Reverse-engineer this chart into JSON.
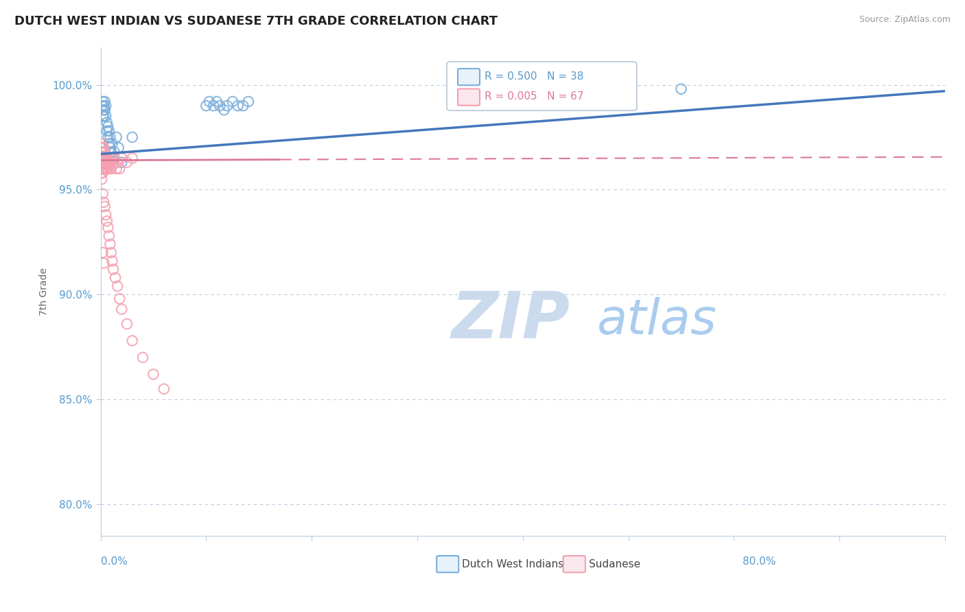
{
  "title": "DUTCH WEST INDIAN VS SUDANESE 7TH GRADE CORRELATION CHART",
  "source_text": "Source: ZipAtlas.com",
  "ylabel": "7th Grade",
  "ytick_labels": [
    "80.0%",
    "85.0%",
    "90.0%",
    "95.0%",
    "100.0%"
  ],
  "ytick_values": [
    0.8,
    0.85,
    0.9,
    0.95,
    1.0
  ],
  "xlim": [
    0.0,
    0.8
  ],
  "ylim": [
    0.785,
    1.018
  ],
  "color_blue": "#7AADDB",
  "color_pink": "#F4A0B0",
  "color_blue_dark": "#4477BB",
  "color_pink_dark": "#DD7799",
  "color_ytick": "#5599CC",
  "watermark_zip": "ZIP",
  "watermark_atlas": "atlas",
  "dutch_x": [
    0.001,
    0.002,
    0.002,
    0.003,
    0.003,
    0.003,
    0.004,
    0.004,
    0.005,
    0.005,
    0.006,
    0.006,
    0.007,
    0.007,
    0.008,
    0.008,
    0.009,
    0.009,
    0.01,
    0.011,
    0.012,
    0.013,
    0.015,
    0.017,
    0.02,
    0.1,
    0.103,
    0.107,
    0.11,
    0.113,
    0.117,
    0.12,
    0.125,
    0.13,
    0.135,
    0.14,
    0.55,
    0.03
  ],
  "dutch_y": [
    0.99,
    0.985,
    0.992,
    0.988,
    0.99,
    0.985,
    0.988,
    0.992,
    0.99,
    0.985,
    0.978,
    0.982,
    0.975,
    0.98,
    0.972,
    0.978,
    0.97,
    0.975,
    0.968,
    0.972,
    0.965,
    0.968,
    0.975,
    0.97,
    0.963,
    0.99,
    0.992,
    0.99,
    0.992,
    0.99,
    0.988,
    0.99,
    0.992,
    0.99,
    0.99,
    0.992,
    0.998,
    0.975
  ],
  "sudanese_x": [
    0.001,
    0.001,
    0.001,
    0.001,
    0.001,
    0.001,
    0.001,
    0.001,
    0.002,
    0.002,
    0.002,
    0.002,
    0.002,
    0.002,
    0.003,
    0.003,
    0.003,
    0.003,
    0.003,
    0.004,
    0.004,
    0.004,
    0.004,
    0.005,
    0.005,
    0.005,
    0.006,
    0.006,
    0.006,
    0.007,
    0.007,
    0.008,
    0.008,
    0.009,
    0.009,
    0.01,
    0.01,
    0.012,
    0.013,
    0.015,
    0.016,
    0.018,
    0.02,
    0.025,
    0.03,
    0.002,
    0.003,
    0.004,
    0.005,
    0.006,
    0.007,
    0.008,
    0.009,
    0.01,
    0.011,
    0.012,
    0.014,
    0.016,
    0.018,
    0.02,
    0.025,
    0.03,
    0.04,
    0.05,
    0.06,
    0.002,
    0.003
  ],
  "sudanese_y": [
    0.97,
    0.972,
    0.968,
    0.966,
    0.964,
    0.96,
    0.958,
    0.955,
    0.968,
    0.965,
    0.97,
    0.963,
    0.96,
    0.958,
    0.966,
    0.963,
    0.96,
    0.97,
    0.965,
    0.965,
    0.962,
    0.968,
    0.96,
    0.963,
    0.965,
    0.96,
    0.962,
    0.965,
    0.96,
    0.963,
    0.96,
    0.965,
    0.962,
    0.96,
    0.963,
    0.965,
    0.96,
    0.962,
    0.965,
    0.96,
    0.963,
    0.96,
    0.965,
    0.963,
    0.965,
    0.948,
    0.944,
    0.942,
    0.938,
    0.935,
    0.932,
    0.928,
    0.924,
    0.92,
    0.916,
    0.912,
    0.908,
    0.904,
    0.898,
    0.893,
    0.886,
    0.878,
    0.87,
    0.862,
    0.855,
    0.92,
    0.915
  ]
}
